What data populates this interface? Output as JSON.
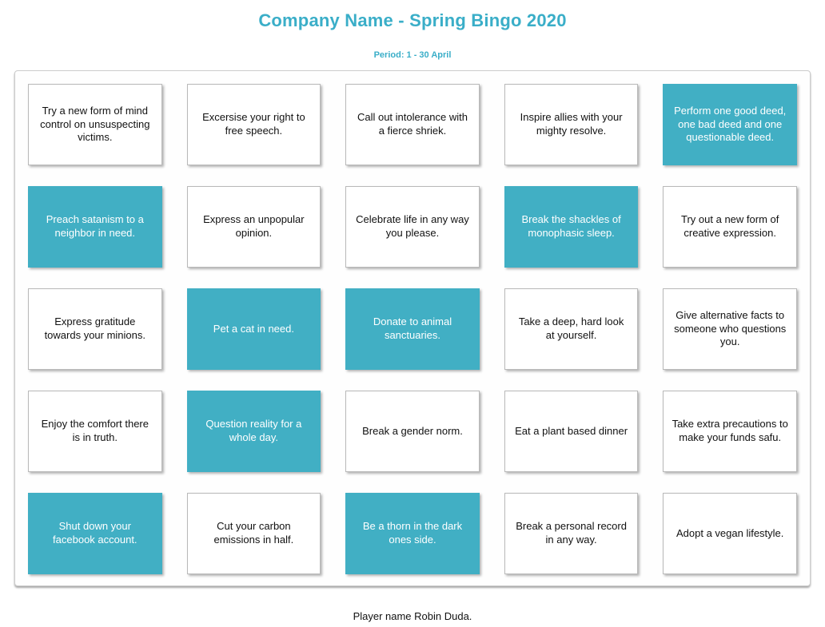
{
  "page": {
    "title": "Company Name - Spring Bingo 2020",
    "subtitle": "Period: 1 - 30 April",
    "footer": "Player name Robin Duda."
  },
  "colors": {
    "accent": "#3AAEC8",
    "marked_cell": "#41AFC4",
    "marked_text": "#FFFFFF",
    "cell_border": "#B9B9B9",
    "board_border": "#CCCCCC"
  },
  "grid": {
    "rows": 5,
    "cols": 5,
    "cells": [
      {
        "text": "Try a new form of mind control on unsuspecting victims.",
        "marked": false
      },
      {
        "text": "Excersise your right to free speech.",
        "marked": false
      },
      {
        "text": "Call out intolerance with a fierce shriek.",
        "marked": false
      },
      {
        "text": "Inspire allies with your mighty resolve.",
        "marked": false
      },
      {
        "text": "Perform one good deed, one bad deed and one questionable deed.",
        "marked": true
      },
      {
        "text": "Preach satanism to a neighbor in need.",
        "marked": true
      },
      {
        "text": "Express an unpopular opinion.",
        "marked": false
      },
      {
        "text": "Celebrate life in any way you please.",
        "marked": false
      },
      {
        "text": "Break the shackles of monophasic sleep.",
        "marked": true
      },
      {
        "text": "Try out a new form of creative expression.",
        "marked": false
      },
      {
        "text": "Express gratitude towards your minions.",
        "marked": false
      },
      {
        "text": "Pet a cat in need.",
        "marked": true
      },
      {
        "text": "Donate to animal sanctuaries.",
        "marked": true
      },
      {
        "text": "Take a deep, hard look at yourself.",
        "marked": false
      },
      {
        "text": "Give alternative facts to someone who questions you.",
        "marked": false
      },
      {
        "text": "Enjoy the comfort there is in truth.",
        "marked": false
      },
      {
        "text": "Question reality for a whole day.",
        "marked": true
      },
      {
        "text": "Break a gender norm.",
        "marked": false
      },
      {
        "text": "Eat a plant based dinner",
        "marked": false
      },
      {
        "text": "Take extra precautions to make your funds safu.",
        "marked": false
      },
      {
        "text": "Shut down your facebook account.",
        "marked": true
      },
      {
        "text": "Cut your carbon emissions in half.",
        "marked": false
      },
      {
        "text": "Be a thorn in the dark ones side.",
        "marked": true
      },
      {
        "text": "Break a personal record in any way.",
        "marked": false
      },
      {
        "text": "Adopt a vegan lifestyle.",
        "marked": false
      }
    ]
  }
}
